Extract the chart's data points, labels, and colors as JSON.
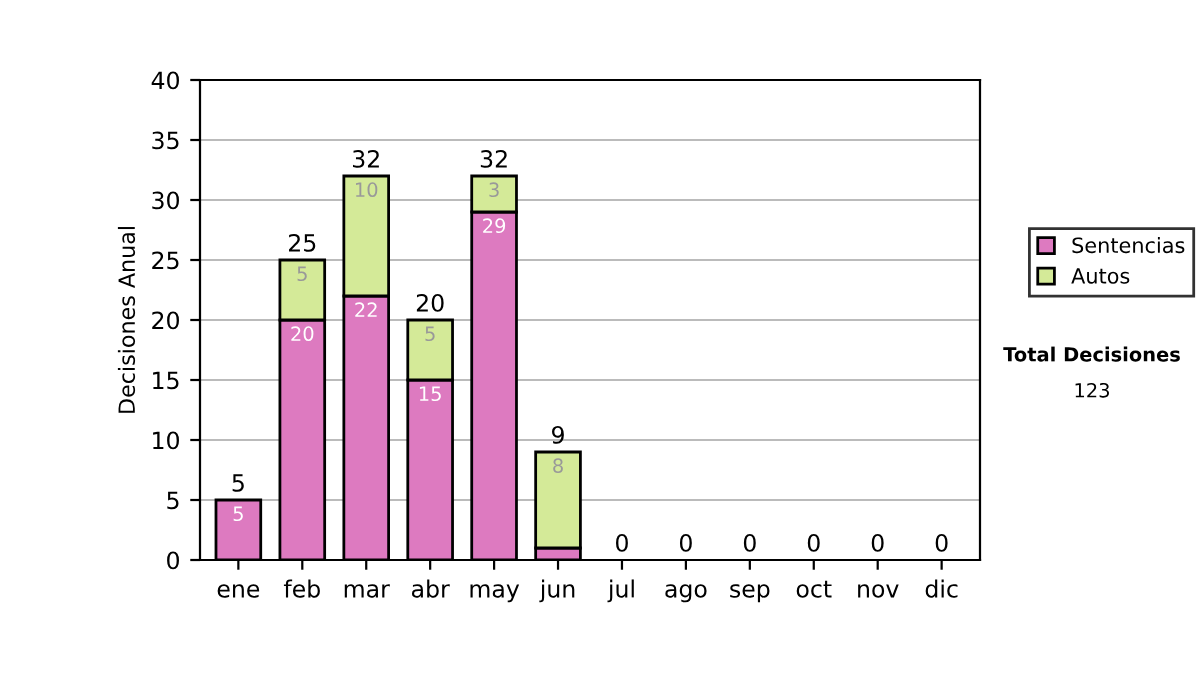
{
  "chart_data": {
    "type": "bar",
    "stacked": true,
    "ylabel": "Decisiones Anual",
    "categories": [
      "ene",
      "feb",
      "mar",
      "abr",
      "may",
      "jun",
      "jul",
      "ago",
      "sep",
      "oct",
      "nov",
      "dic"
    ],
    "series": [
      {
        "name": "Sentencias",
        "color": "#dd7ac0",
        "values": [
          5,
          20,
          22,
          15,
          29,
          1,
          0,
          0,
          0,
          0,
          0,
          0
        ],
        "value_labels": [
          "5",
          "20",
          "22",
          "15",
          "29",
          null,
          null,
          null,
          null,
          null,
          null,
          null
        ]
      },
      {
        "name": "Autos",
        "color": "#d4ea98",
        "values": [
          0,
          5,
          10,
          5,
          3,
          8,
          0,
          0,
          0,
          0,
          0,
          0
        ],
        "value_labels": [
          null,
          "5",
          "10",
          "5",
          "3",
          "8",
          null,
          null,
          null,
          null,
          null,
          null
        ]
      }
    ],
    "totals": [
      "5",
      "25",
      "32",
      "20",
      "32",
      "9",
      "0",
      "0",
      "0",
      "0",
      "0",
      "0"
    ],
    "ylim": [
      0,
      40
    ],
    "yticks": [
      0,
      5,
      10,
      15,
      20,
      25,
      30,
      35,
      40
    ],
    "grid": "y",
    "legend": "right",
    "annotations": [
      "Total Decisiones",
      "123"
    ]
  }
}
